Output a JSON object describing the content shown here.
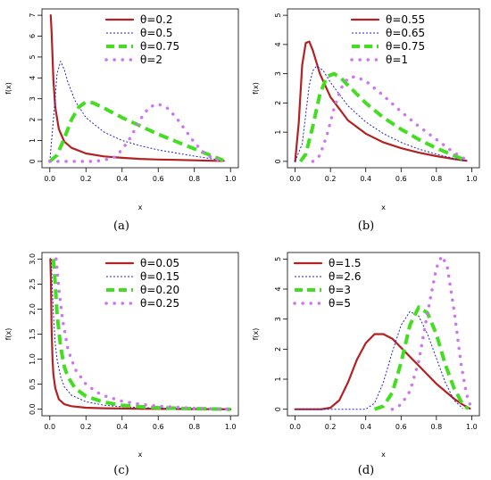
{
  "chart_data": [
    {
      "type": "line",
      "caption": "(a)",
      "xlabel": "x",
      "ylabel": "f(x)",
      "xlim": [
        0,
        1
      ],
      "ylim": [
        0,
        7
      ],
      "xticks": [
        0.0,
        0.2,
        0.4,
        0.6,
        0.8,
        1.0
      ],
      "xtick_labels": [
        "0.0",
        "0.2",
        "0.4",
        "0.6",
        "0.8",
        "1.0"
      ],
      "yticks": [
        0,
        1,
        2,
        3,
        4,
        5,
        6,
        7
      ],
      "ytick_labels": [
        "0",
        "1",
        "2",
        "3",
        "4",
        "5",
        "6",
        "7"
      ],
      "legend_position": "top-right",
      "series": [
        {
          "name": "θ=0.2",
          "color": "#b22222",
          "style": "solid",
          "x": [
            0.005,
            0.01,
            0.02,
            0.03,
            0.05,
            0.08,
            0.12,
            0.2,
            0.3,
            0.4,
            0.5,
            0.6,
            0.7,
            0.8,
            0.9,
            0.96
          ],
          "y": [
            7.0,
            6.2,
            3.9,
            2.6,
            1.55,
            0.95,
            0.65,
            0.38,
            0.24,
            0.17,
            0.12,
            0.09,
            0.07,
            0.05,
            0.03,
            0.02
          ]
        },
        {
          "name": "θ=0.5",
          "color": "#2222cc",
          "style": "dotted",
          "x": [
            0.0,
            0.02,
            0.04,
            0.06,
            0.08,
            0.1,
            0.14,
            0.2,
            0.3,
            0.4,
            0.5,
            0.6,
            0.7,
            0.8,
            0.9,
            0.97
          ],
          "y": [
            0.0,
            2.0,
            4.2,
            4.8,
            4.4,
            3.8,
            2.9,
            2.1,
            1.4,
            1.0,
            0.75,
            0.55,
            0.4,
            0.25,
            0.12,
            0.03
          ]
        },
        {
          "name": "θ=0.75",
          "color": "#44dd22",
          "style": "dashed",
          "x": [
            0.0,
            0.04,
            0.08,
            0.12,
            0.16,
            0.2,
            0.24,
            0.3,
            0.4,
            0.5,
            0.6,
            0.7,
            0.8,
            0.9,
            0.96
          ],
          "y": [
            0.0,
            0.3,
            1.1,
            2.0,
            2.6,
            2.85,
            2.8,
            2.55,
            2.1,
            1.7,
            1.3,
            0.95,
            0.6,
            0.25,
            0.05
          ]
        },
        {
          "name": "θ=2",
          "color": "#cc77ee",
          "style": "dots",
          "x": [
            0.0,
            0.25,
            0.35,
            0.4,
            0.45,
            0.5,
            0.55,
            0.6,
            0.65,
            0.7,
            0.75,
            0.8,
            0.85,
            0.9,
            0.95
          ],
          "y": [
            0.0,
            0.0,
            0.15,
            0.55,
            1.2,
            2.0,
            2.6,
            2.75,
            2.55,
            2.1,
            1.5,
            0.9,
            0.45,
            0.15,
            0.02
          ]
        }
      ]
    },
    {
      "type": "line",
      "caption": "(b)",
      "xlabel": "x",
      "ylabel": "f(x)",
      "xlim": [
        0,
        1
      ],
      "ylim": [
        0,
        5
      ],
      "xticks": [
        0.0,
        0.2,
        0.4,
        0.6,
        0.8,
        1.0
      ],
      "xtick_labels": [
        "0.0",
        "0.2",
        "0.4",
        "0.6",
        "0.8",
        "1.0"
      ],
      "yticks": [
        0,
        1,
        2,
        3,
        4,
        5
      ],
      "ytick_labels": [
        "0",
        "1",
        "2",
        "3",
        "4",
        "5"
      ],
      "legend_position": "top-right",
      "series": [
        {
          "name": "θ=0.55",
          "color": "#b22222",
          "style": "solid",
          "x": [
            0.0,
            0.02,
            0.04,
            0.06,
            0.08,
            0.1,
            0.14,
            0.2,
            0.3,
            0.4,
            0.5,
            0.6,
            0.7,
            0.8,
            0.9,
            0.97
          ],
          "y": [
            0.0,
            1.3,
            3.3,
            4.05,
            4.1,
            3.8,
            3.0,
            2.2,
            1.4,
            0.95,
            0.65,
            0.45,
            0.3,
            0.18,
            0.08,
            0.02
          ]
        },
        {
          "name": "θ=0.65",
          "color": "#2222cc",
          "style": "dotted",
          "x": [
            0.0,
            0.04,
            0.08,
            0.1,
            0.12,
            0.14,
            0.16,
            0.2,
            0.3,
            0.4,
            0.5,
            0.6,
            0.7,
            0.8,
            0.9,
            0.97
          ],
          "y": [
            0.0,
            0.6,
            2.6,
            3.1,
            3.25,
            3.2,
            3.1,
            2.7,
            1.9,
            1.35,
            0.95,
            0.65,
            0.42,
            0.25,
            0.1,
            0.02
          ]
        },
        {
          "name": "θ=0.75",
          "color": "#44dd22",
          "style": "dashed",
          "x": [
            0.03,
            0.06,
            0.1,
            0.14,
            0.18,
            0.22,
            0.26,
            0.3,
            0.4,
            0.5,
            0.6,
            0.7,
            0.8,
            0.9,
            0.97
          ],
          "y": [
            0.0,
            0.25,
            1.2,
            2.3,
            2.9,
            3.0,
            2.85,
            2.6,
            2.0,
            1.5,
            1.1,
            0.75,
            0.45,
            0.2,
            0.03
          ]
        },
        {
          "name": "θ=1",
          "color": "#cc77ee",
          "style": "dots",
          "x": [
            0.1,
            0.14,
            0.18,
            0.22,
            0.26,
            0.3,
            0.34,
            0.4,
            0.5,
            0.6,
            0.7,
            0.8,
            0.9,
            0.97
          ],
          "y": [
            0.0,
            0.2,
            0.9,
            1.8,
            2.5,
            2.85,
            2.9,
            2.75,
            2.25,
            1.7,
            1.2,
            0.75,
            0.3,
            0.05
          ]
        }
      ]
    },
    {
      "type": "line",
      "caption": "(c)",
      "xlabel": "x",
      "ylabel": "f(x)",
      "xlim": [
        0,
        1
      ],
      "ylim": [
        0,
        3
      ],
      "xticks": [
        0.0,
        0.2,
        0.4,
        0.6,
        0.8,
        1.0
      ],
      "xtick_labels": [
        "0.0",
        "0.2",
        "0.4",
        "0.6",
        "0.8",
        "1.0"
      ],
      "yticks": [
        0,
        0.5,
        1.0,
        1.5,
        2.0,
        2.5,
        3.0
      ],
      "ytick_labels": [
        "0.0",
        "0.5",
        "1.0",
        "1.5",
        "2.0",
        "2.5",
        "3.0"
      ],
      "legend_position": "top-right",
      "series": [
        {
          "name": "θ=0.05",
          "color": "#b22222",
          "style": "solid",
          "x": [
            0.003,
            0.006,
            0.01,
            0.015,
            0.02,
            0.03,
            0.05,
            0.08,
            0.12,
            0.2,
            0.3,
            0.5,
            0.7,
            1.0
          ],
          "y": [
            3.0,
            2.6,
            1.6,
            1.0,
            0.7,
            0.42,
            0.2,
            0.1,
            0.06,
            0.03,
            0.02,
            0.01,
            0.005,
            0.0
          ]
        },
        {
          "name": "θ=0.15",
          "color": "#2222cc",
          "style": "dotted",
          "x": [
            0.008,
            0.012,
            0.02,
            0.03,
            0.04,
            0.06,
            0.08,
            0.12,
            0.2,
            0.3,
            0.4,
            0.6,
            0.8,
            1.0
          ],
          "y": [
            3.0,
            2.6,
            1.9,
            1.3,
            1.0,
            0.65,
            0.45,
            0.28,
            0.15,
            0.08,
            0.05,
            0.02,
            0.01,
            0.0
          ]
        },
        {
          "name": "θ=0.20",
          "color": "#44dd22",
          "style": "dashed",
          "x": [
            0.02,
            0.03,
            0.04,
            0.06,
            0.08,
            0.1,
            0.14,
            0.2,
            0.3,
            0.4,
            0.5,
            0.6,
            0.8,
            1.0
          ],
          "y": [
            3.0,
            2.5,
            1.9,
            1.25,
            0.85,
            0.65,
            0.42,
            0.26,
            0.14,
            0.08,
            0.05,
            0.03,
            0.01,
            0.0
          ]
        },
        {
          "name": "θ=0.25",
          "color": "#cc77ee",
          "style": "dots",
          "x": [
            0.035,
            0.05,
            0.07,
            0.1,
            0.14,
            0.2,
            0.26,
            0.3,
            0.4,
            0.5,
            0.6,
            0.8,
            1.0
          ],
          "y": [
            3.0,
            2.4,
            1.8,
            1.2,
            0.8,
            0.5,
            0.34,
            0.27,
            0.16,
            0.1,
            0.06,
            0.02,
            0.0
          ]
        }
      ]
    },
    {
      "type": "line",
      "caption": "(d)",
      "xlabel": "x",
      "ylabel": "f(x)",
      "xlim": [
        0,
        1
      ],
      "ylim": [
        0,
        5
      ],
      "xticks": [
        0.0,
        0.2,
        0.4,
        0.6,
        0.8,
        1.0
      ],
      "xtick_labels": [
        "0.0",
        "0.2",
        "0.4",
        "0.6",
        "0.8",
        "1.0"
      ],
      "yticks": [
        0,
        1,
        2,
        3,
        4,
        5
      ],
      "ytick_labels": [
        "0",
        "1",
        "2",
        "3",
        "4",
        "5"
      ],
      "legend_position": "top-left",
      "series": [
        {
          "name": "θ=1.5",
          "color": "#b22222",
          "style": "solid",
          "x": [
            0.0,
            0.15,
            0.2,
            0.25,
            0.3,
            0.35,
            0.4,
            0.45,
            0.5,
            0.55,
            0.6,
            0.65,
            0.7,
            0.75,
            0.8,
            0.85,
            0.9,
            0.95,
            0.99
          ],
          "y": [
            0.0,
            0.0,
            0.05,
            0.3,
            0.9,
            1.65,
            2.2,
            2.5,
            2.5,
            2.35,
            2.05,
            1.75,
            1.45,
            1.15,
            0.85,
            0.6,
            0.35,
            0.15,
            0.02
          ]
        },
        {
          "name": "θ=2.6",
          "color": "#2222cc",
          "style": "dotted",
          "x": [
            0.0,
            0.4,
            0.45,
            0.5,
            0.55,
            0.6,
            0.65,
            0.7,
            0.75,
            0.8,
            0.85,
            0.9,
            0.95
          ],
          "y": [
            0.0,
            0.0,
            0.2,
            0.9,
            1.9,
            2.8,
            3.25,
            3.1,
            2.5,
            1.7,
            0.9,
            0.3,
            0.02
          ]
        },
        {
          "name": "θ=3",
          "color": "#44dd22",
          "style": "dashed",
          "x": [
            0.45,
            0.5,
            0.55,
            0.6,
            0.65,
            0.7,
            0.75,
            0.8,
            0.85,
            0.9,
            0.95,
            0.98
          ],
          "y": [
            0.0,
            0.1,
            0.55,
            1.55,
            2.8,
            3.4,
            3.2,
            2.5,
            1.5,
            0.7,
            0.15,
            0.02
          ]
        },
        {
          "name": "θ=5",
          "color": "#cc77ee",
          "style": "dots",
          "x": [
            0.55,
            0.6,
            0.65,
            0.7,
            0.75,
            0.8,
            0.83,
            0.86,
            0.9,
            0.94,
            0.97,
            1.0
          ],
          "y": [
            0.0,
            0.15,
            0.6,
            1.6,
            3.2,
            4.7,
            5.1,
            4.8,
            3.3,
            1.5,
            0.5,
            0.0
          ]
        }
      ]
    }
  ]
}
